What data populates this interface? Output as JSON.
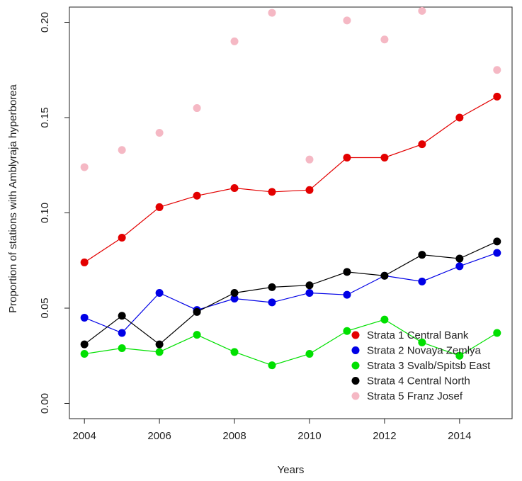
{
  "chart_data": {
    "type": "line",
    "title": "",
    "xlabel": "Years",
    "ylabel": "Proportion of stations with Amblyraja hyperborea",
    "xlim": [
      2003.6,
      2015.4
    ],
    "ylim": [
      -0.008,
      0.208
    ],
    "x_ticks": [
      2004,
      2006,
      2008,
      2010,
      2012,
      2014
    ],
    "x_tick_labels": [
      "2004",
      "2006",
      "2008",
      "2010",
      "2012",
      "2014"
    ],
    "y_ticks": [
      0.0,
      0.05,
      0.1,
      0.15,
      0.2
    ],
    "y_tick_labels": [
      "0.00",
      "0.05",
      "0.10",
      "0.15",
      "0.20"
    ],
    "grid": false,
    "legend_position": "bottom-right",
    "x": [
      2004,
      2005,
      2006,
      2007,
      2008,
      2009,
      2010,
      2011,
      2012,
      2013,
      2014,
      2015
    ],
    "series": [
      {
        "name": "Strata 1 Central Bank",
        "color": "#e30000",
        "line": true,
        "values": [
          0.074,
          0.087,
          0.103,
          0.109,
          0.113,
          0.111,
          0.112,
          0.129,
          0.129,
          0.136,
          0.15,
          0.161
        ]
      },
      {
        "name": "Strata 2 Novaya Zemlya",
        "color": "#0000e6",
        "line": true,
        "values": [
          0.045,
          0.037,
          0.058,
          0.049,
          0.055,
          0.053,
          0.058,
          0.057,
          0.067,
          0.064,
          0.072,
          0.079
        ]
      },
      {
        "name": "Strata 3 Svalb/Spitsb East",
        "color": "#00e000",
        "line": true,
        "values": [
          0.026,
          0.029,
          0.027,
          0.036,
          0.027,
          0.02,
          0.026,
          0.038,
          0.044,
          0.032,
          0.025,
          0.037
        ]
      },
      {
        "name": "Strata 4 Central North",
        "color": "#000000",
        "line": true,
        "values": [
          0.031,
          0.046,
          0.031,
          0.048,
          0.058,
          0.061,
          0.062,
          0.069,
          0.067,
          0.078,
          0.076,
          0.085
        ]
      },
      {
        "name": "Strata 5 Franz Josef",
        "color": "#f5b8c4",
        "line": false,
        "values": [
          0.124,
          0.133,
          0.142,
          0.155,
          0.19,
          0.205,
          0.128,
          0.201,
          0.191,
          0.206,
          null,
          0.175
        ]
      }
    ]
  }
}
